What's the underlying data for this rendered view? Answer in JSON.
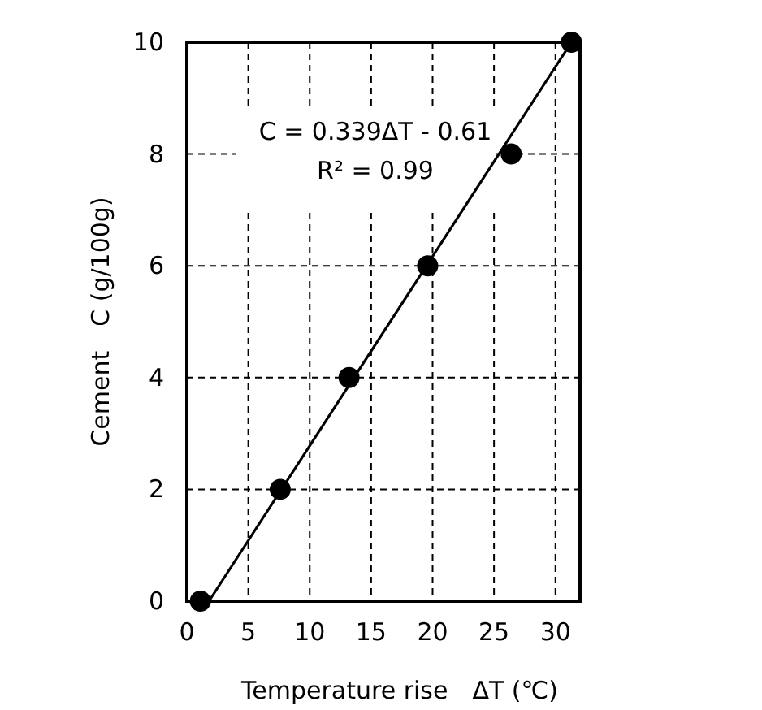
{
  "chart_data": {
    "type": "scatter",
    "xlabel": "Temperature rise　ΔT (℃)",
    "ylabel": "Cement　C (g/100g)",
    "annotations": [
      "C = 0.339ΔT - 0.61",
      "R² = 0.99"
    ],
    "series": [
      {
        "color": "#000000",
        "x": [
          1.1,
          7.6,
          13.2,
          19.6,
          26.4,
          31.3
        ],
        "values": [
          0,
          2,
          4,
          6,
          8,
          10
        ],
        "marker": "circle"
      },
      {
        "type": "line",
        "color": "#000000",
        "x": [
          1.8,
          31.3
        ],
        "values": [
          0,
          10
        ],
        "marker": "none",
        "line_style": "solid"
      }
    ],
    "xlim": [
      0,
      32
    ],
    "ylim": [
      0,
      10
    ],
    "xticks": [
      0,
      5,
      10,
      15,
      20,
      25,
      30
    ],
    "yticks": [
      0,
      2,
      4,
      6,
      8,
      10
    ],
    "grid": true
  }
}
